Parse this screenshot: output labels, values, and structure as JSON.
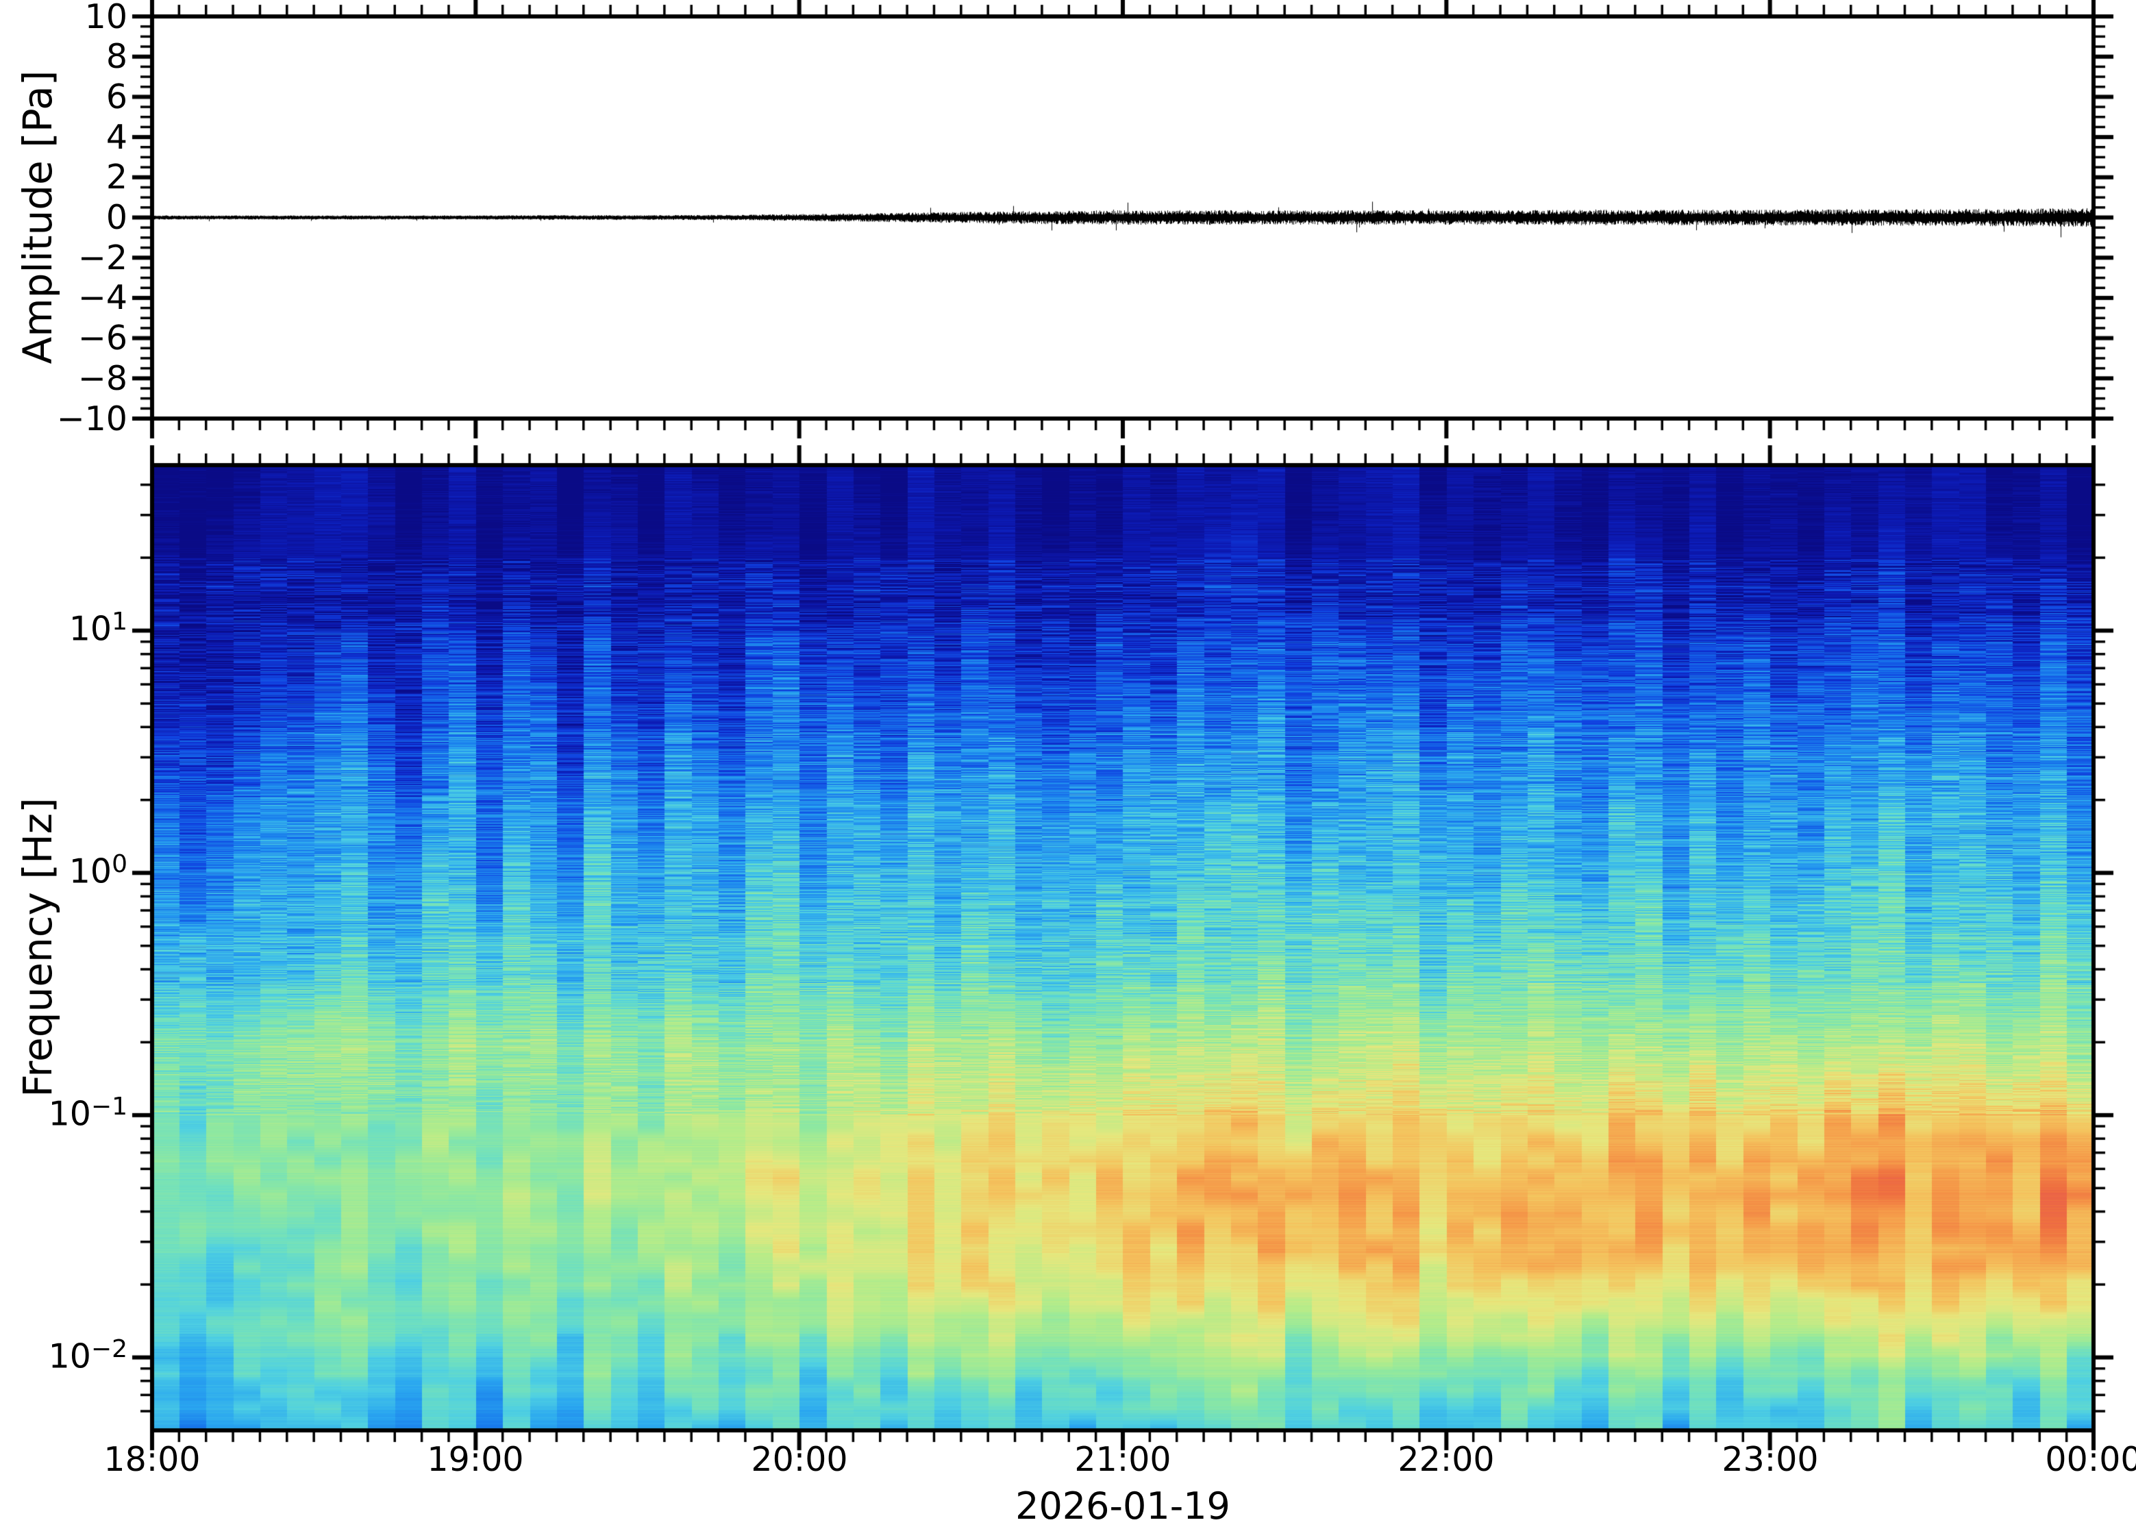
{
  "figure_title": "",
  "chart_data": [
    {
      "type": "line",
      "role": "waveform-panel",
      "ylabel": "Amplitude [Pa]",
      "ylim": [
        -10,
        10
      ],
      "yticks": [
        "10",
        "8",
        "6",
        "4",
        "2",
        "0",
        "−2",
        "−4",
        "−6",
        "−8",
        "−10"
      ],
      "ytick_values": [
        10,
        8,
        6,
        4,
        2,
        0,
        -2,
        -4,
        -6,
        -8,
        -10
      ],
      "line_color": "#000000",
      "x_range_minutes": [
        0,
        360
      ],
      "noise_envelope": {
        "t_minutes": [
          0,
          15,
          30,
          45,
          60,
          75,
          90,
          105,
          120,
          135,
          150,
          165,
          180,
          195,
          210,
          225,
          240,
          255,
          270,
          285,
          300,
          315,
          330,
          345,
          360
        ],
        "amplitude_pa": [
          0.05,
          0.05,
          0.05,
          0.05,
          0.05,
          0.06,
          0.06,
          0.07,
          0.1,
          0.14,
          0.18,
          0.22,
          0.24,
          0.25,
          0.24,
          0.25,
          0.24,
          0.25,
          0.26,
          0.26,
          0.27,
          0.28,
          0.28,
          0.3,
          0.32
        ]
      }
    },
    {
      "type": "heatmap",
      "role": "spectrogram-panel",
      "ylabel": "Frequency [Hz]",
      "yscale": "log",
      "f_log10_range": [
        -2.301,
        1.683
      ],
      "yticks": [
        {
          "base": "10",
          "exp": "1"
        },
        {
          "base": "10",
          "exp": "0"
        },
        {
          "base": "10",
          "exp": "−1"
        },
        {
          "base": "10",
          "exp": "−2"
        }
      ],
      "ytick_log10_values": [
        1,
        0,
        -1,
        -2
      ],
      "xticks": [
        "18:00",
        "19:00",
        "20:00",
        "21:00",
        "22:00",
        "23:00",
        "00:00"
      ],
      "xtick_minutes": [
        0,
        60,
        120,
        180,
        240,
        300,
        360
      ],
      "minor_xtick_step_minutes": 5,
      "xlabel": "2026-01-19",
      "colormap": [
        [
          0.0,
          "#0a0a84"
        ],
        [
          0.1,
          "#0d1cb8"
        ],
        [
          0.18,
          "#1040e0"
        ],
        [
          0.28,
          "#1878ec"
        ],
        [
          0.36,
          "#2ba8f0"
        ],
        [
          0.44,
          "#4fd0e2"
        ],
        [
          0.5,
          "#6fe0c0"
        ],
        [
          0.56,
          "#8fe8a0"
        ],
        [
          0.62,
          "#b4ec8a"
        ],
        [
          0.7,
          "#e6e87e"
        ],
        [
          0.78,
          "#f4c45e"
        ],
        [
          0.85,
          "#f59a49"
        ],
        [
          0.92,
          "#ef7140"
        ],
        [
          1.0,
          "#e54f52"
        ]
      ],
      "grid": {
        "t_minutes": [
          0,
          15,
          30,
          45,
          60,
          75,
          90,
          105,
          120,
          135,
          150,
          165,
          180,
          195,
          210,
          225,
          240,
          255,
          270,
          285,
          300,
          315,
          330,
          345,
          360
        ],
        "f_log10": [
          1.68,
          1.4,
          1.1,
          0.9,
          0.6,
          0.3,
          0.0,
          -0.4,
          -0.7,
          -1.0,
          -1.3,
          -1.6,
          -1.9,
          -2.1,
          -2.3
        ],
        "power": [
          [
            0.03,
            0.03,
            0.03,
            0.03,
            0.03,
            0.03,
            0.03,
            0.03,
            0.03,
            0.03,
            0.03,
            0.03,
            0.03,
            0.03,
            0.03,
            0.03,
            0.03,
            0.03,
            0.03,
            0.03,
            0.03,
            0.03,
            0.03,
            0.03,
            0.03
          ],
          [
            0.04,
            0.04,
            0.04,
            0.04,
            0.04,
            0.04,
            0.04,
            0.04,
            0.04,
            0.04,
            0.04,
            0.04,
            0.05,
            0.05,
            0.05,
            0.05,
            0.05,
            0.05,
            0.05,
            0.05,
            0.05,
            0.05,
            0.05,
            0.05,
            0.05
          ],
          [
            0.08,
            0.08,
            0.07,
            0.08,
            0.09,
            0.08,
            0.09,
            0.1,
            0.1,
            0.11,
            0.1,
            0.11,
            0.12,
            0.11,
            0.12,
            0.12,
            0.11,
            0.12,
            0.13,
            0.12,
            0.13,
            0.13,
            0.12,
            0.13,
            0.13
          ],
          [
            0.14,
            0.13,
            0.12,
            0.14,
            0.16,
            0.15,
            0.16,
            0.17,
            0.17,
            0.18,
            0.17,
            0.18,
            0.19,
            0.18,
            0.19,
            0.19,
            0.18,
            0.19,
            0.2,
            0.19,
            0.2,
            0.2,
            0.19,
            0.2,
            0.2
          ],
          [
            0.22,
            0.2,
            0.19,
            0.21,
            0.24,
            0.23,
            0.24,
            0.25,
            0.25,
            0.26,
            0.25,
            0.26,
            0.27,
            0.26,
            0.27,
            0.27,
            0.26,
            0.27,
            0.28,
            0.27,
            0.28,
            0.28,
            0.27,
            0.28,
            0.28
          ],
          [
            0.3,
            0.28,
            0.27,
            0.29,
            0.32,
            0.31,
            0.32,
            0.33,
            0.33,
            0.34,
            0.33,
            0.34,
            0.35,
            0.34,
            0.35,
            0.35,
            0.34,
            0.35,
            0.36,
            0.35,
            0.36,
            0.36,
            0.35,
            0.36,
            0.36
          ],
          [
            0.36,
            0.34,
            0.33,
            0.35,
            0.38,
            0.37,
            0.38,
            0.39,
            0.39,
            0.4,
            0.39,
            0.4,
            0.41,
            0.4,
            0.41,
            0.41,
            0.4,
            0.41,
            0.42,
            0.41,
            0.42,
            0.42,
            0.41,
            0.42,
            0.42
          ],
          [
            0.44,
            0.43,
            0.42,
            0.44,
            0.46,
            0.45,
            0.46,
            0.47,
            0.47,
            0.48,
            0.47,
            0.48,
            0.49,
            0.48,
            0.49,
            0.49,
            0.48,
            0.49,
            0.5,
            0.49,
            0.5,
            0.5,
            0.49,
            0.5,
            0.5
          ],
          [
            0.56,
            0.55,
            0.54,
            0.56,
            0.58,
            0.57,
            0.57,
            0.58,
            0.58,
            0.59,
            0.58,
            0.59,
            0.6,
            0.59,
            0.6,
            0.6,
            0.59,
            0.6,
            0.61,
            0.6,
            0.61,
            0.61,
            0.6,
            0.61,
            0.61
          ],
          [
            0.55,
            0.54,
            0.53,
            0.55,
            0.57,
            0.56,
            0.58,
            0.6,
            0.63,
            0.66,
            0.68,
            0.7,
            0.72,
            0.71,
            0.72,
            0.74,
            0.73,
            0.74,
            0.76,
            0.75,
            0.77,
            0.78,
            0.76,
            0.79,
            0.8
          ],
          [
            0.56,
            0.55,
            0.54,
            0.56,
            0.58,
            0.59,
            0.61,
            0.64,
            0.68,
            0.71,
            0.74,
            0.77,
            0.8,
            0.79,
            0.8,
            0.81,
            0.79,
            0.8,
            0.83,
            0.82,
            0.84,
            0.86,
            0.83,
            0.87,
            0.88
          ],
          [
            0.52,
            0.51,
            0.5,
            0.53,
            0.55,
            0.56,
            0.58,
            0.61,
            0.65,
            0.68,
            0.71,
            0.73,
            0.76,
            0.75,
            0.76,
            0.77,
            0.75,
            0.76,
            0.79,
            0.78,
            0.8,
            0.81,
            0.79,
            0.82,
            0.83
          ],
          [
            0.5,
            0.49,
            0.48,
            0.5,
            0.52,
            0.53,
            0.54,
            0.56,
            0.58,
            0.6,
            0.61,
            0.62,
            0.63,
            0.62,
            0.63,
            0.63,
            0.62,
            0.63,
            0.64,
            0.63,
            0.64,
            0.65,
            0.63,
            0.65,
            0.66
          ],
          [
            0.44,
            0.43,
            0.42,
            0.44,
            0.46,
            0.46,
            0.47,
            0.48,
            0.49,
            0.5,
            0.5,
            0.51,
            0.52,
            0.51,
            0.52,
            0.52,
            0.51,
            0.52,
            0.53,
            0.52,
            0.53,
            0.53,
            0.52,
            0.53,
            0.54
          ],
          [
            0.38,
            0.37,
            0.36,
            0.38,
            0.4,
            0.4,
            0.41,
            0.42,
            0.42,
            0.43,
            0.43,
            0.44,
            0.44,
            0.43,
            0.44,
            0.44,
            0.43,
            0.44,
            0.45,
            0.44,
            0.45,
            0.45,
            0.44,
            0.45,
            0.46
          ]
        ]
      }
    }
  ]
}
